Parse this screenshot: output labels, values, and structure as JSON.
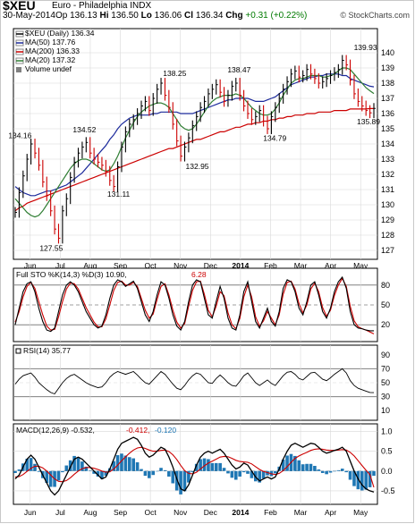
{
  "header": {
    "symbol": "$XEU",
    "name": "Euro - Philadelphia INDX",
    "date": "30-May-2014",
    "open_label": "Op",
    "open": "136.13",
    "high_label": "Hi",
    "high": "136.50",
    "low_label": "Lo",
    "low": "136.06",
    "close_label": "Cl",
    "close": "136.34",
    "change_label": "Chg",
    "change": "+0.31 (+0.22%)",
    "credit": "© StockCharts.com"
  },
  "colors": {
    "price": "#000000",
    "ma50": "#1c2a9c",
    "ma200": "#cc0000",
    "ma20": "#2e7d32",
    "volume": "#808080",
    "grid": "#d8d8d8",
    "ref_line": "#808080",
    "stoch_k": "#000000",
    "stoch_d": "#cc0000",
    "macd": "#000000",
    "macd_signal": "#cc0000",
    "macd_hist": "#1f77b4"
  },
  "chart_data": [
    {
      "type": "line",
      "panel": "price",
      "legend": [
        {
          "key": "price",
          "label": "$XEU (Daily) 136.34"
        },
        {
          "key": "ma50",
          "label": "MA(50) 137.76"
        },
        {
          "key": "ma200",
          "label": "MA(200) 136.33"
        },
        {
          "key": "ma20",
          "label": "MA(20) 137.32"
        },
        {
          "key": "volume",
          "label": "Volume undef"
        }
      ],
      "x_labels": [
        "Jun",
        "Jul",
        "Aug",
        "Sep",
        "Oct",
        "Nov",
        "Dec",
        "2014",
        "Feb",
        "Mar",
        "Apr",
        "May"
      ],
      "ylim": [
        127,
        141
      ],
      "yticks": [
        127,
        128,
        129,
        130,
        131,
        132,
        133,
        134,
        135,
        136,
        137,
        138,
        139,
        140
      ],
      "annotations": [
        {
          "label": "127.55",
          "x": 0.104,
          "y": 127.55
        },
        {
          "label": "134.16",
          "x": 0.018,
          "y": 134.16
        },
        {
          "label": "134.52",
          "x": 0.195,
          "y": 134.52
        },
        {
          "label": "131.11",
          "x": 0.289,
          "y": 131.11
        },
        {
          "label": "138.25",
          "x": 0.443,
          "y": 138.25
        },
        {
          "label": "132.95",
          "x": 0.505,
          "y": 132.95
        },
        {
          "label": "138.47",
          "x": 0.62,
          "y": 138.47
        },
        {
          "label": "134.79",
          "x": 0.718,
          "y": 134.79
        },
        {
          "label": "139.93",
          "x": 0.967,
          "y": 139.93
        },
        {
          "label": "135.89",
          "x": 1.005,
          "y": 135.89
        }
      ],
      "price": [
        129.5,
        130.8,
        131.9,
        133.0,
        134.0,
        133.4,
        132.6,
        131.5,
        130.6,
        129.6,
        128.4,
        127.8,
        129.6,
        130.4,
        131.8,
        132.8,
        133.4,
        133.8,
        134.1,
        133.4,
        133.0,
        132.8,
        132.6,
        132.2,
        131.6,
        131.2,
        132.5,
        133.8,
        134.8,
        135.3,
        135.6,
        136.0,
        136.5,
        136.8,
        136.2,
        137.0,
        137.6,
        138.0,
        137.2,
        136.4,
        135.3,
        134.2,
        133.2,
        133.8,
        134.4,
        135.2,
        135.8,
        136.4,
        136.8,
        137.3,
        137.6,
        137.9,
        137.4,
        136.8,
        137.2,
        137.8,
        138.0,
        137.2,
        136.5,
        136.0,
        135.6,
        135.8,
        136.2,
        135.5,
        135.0,
        135.8,
        136.4,
        137.0,
        137.6,
        138.1,
        138.6,
        138.8,
        138.4,
        138.5,
        138.9,
        138.6,
        138.3,
        138.0,
        138.1,
        138.3,
        138.5,
        138.7,
        138.9,
        139.5,
        139.2,
        138.2,
        137.3,
        136.8,
        136.5,
        136.2,
        136.05,
        136.34
      ],
      "ma50": [
        131.2,
        131.0,
        130.8,
        130.7,
        130.6,
        130.6,
        130.7,
        130.8,
        130.9,
        130.9,
        131.0,
        131.1,
        131.2,
        131.3,
        131.5,
        131.7,
        131.9,
        132.1,
        132.4,
        132.7,
        133.0,
        133.3,
        133.6,
        133.9,
        134.3,
        134.6,
        135.0,
        135.3,
        135.5,
        135.7,
        135.8,
        135.9,
        135.9,
        135.9,
        135.9,
        136.0,
        136.0,
        136.1,
        136.1,
        136.1,
        136.1,
        136.1,
        136.0,
        136.0,
        136.0,
        136.0,
        136.1,
        136.2,
        136.3,
        136.4,
        136.5,
        136.6,
        136.7,
        136.8,
        136.9,
        136.9,
        137.0,
        137.0,
        137.0,
        137.0,
        136.9,
        136.8,
        136.8,
        136.8,
        136.9,
        137.0,
        137.1,
        137.3,
        137.5,
        137.7,
        137.9,
        138.0,
        138.1,
        138.2,
        138.3,
        138.4,
        138.4,
        138.5,
        138.5,
        138.6,
        138.6,
        138.6,
        138.6,
        138.5,
        138.5,
        138.3,
        138.2,
        138.1,
        138.0,
        137.9,
        137.8,
        137.76
      ],
      "ma200": [
        129.6,
        129.8,
        129.9,
        130.1,
        130.2,
        130.3,
        130.4,
        130.5,
        130.6,
        130.7,
        130.8,
        130.9,
        131.0,
        131.1,
        131.2,
        131.3,
        131.4,
        131.5,
        131.6,
        131.7,
        131.8,
        131.9,
        132.0,
        132.1,
        132.2,
        132.3,
        132.4,
        132.5,
        132.6,
        132.7,
        132.8,
        132.9,
        133.0,
        133.1,
        133.2,
        133.3,
        133.4,
        133.5,
        133.6,
        133.7,
        133.7,
        133.8,
        133.9,
        134.0,
        134.1,
        134.2,
        134.3,
        134.3,
        134.4,
        134.5,
        134.6,
        134.7,
        134.8,
        134.8,
        134.9,
        135.0,
        135.1,
        135.1,
        135.2,
        135.3,
        135.3,
        135.4,
        135.4,
        135.5,
        135.5,
        135.6,
        135.6,
        135.7,
        135.7,
        135.8,
        135.8,
        135.9,
        135.9,
        135.9,
        136.0,
        136.0,
        136.0,
        136.1,
        136.1,
        136.1,
        136.1,
        136.2,
        136.2,
        136.2,
        136.2,
        136.3,
        136.3,
        136.3,
        136.3,
        136.3,
        136.33,
        136.33
      ],
      "ma20": [
        130.4,
        130.1,
        129.8,
        129.5,
        129.3,
        129.2,
        129.3,
        129.6,
        130.0,
        130.4,
        130.8,
        131.2,
        131.6,
        132.0,
        132.4,
        132.7,
        132.9,
        133.0,
        133.0,
        132.9,
        132.7,
        132.5,
        132.3,
        132.2,
        132.3,
        132.7,
        133.2,
        133.8,
        134.4,
        134.9,
        135.4,
        135.8,
        136.1,
        136.3,
        136.5,
        136.6,
        136.7,
        136.7,
        136.6,
        136.4,
        136.0,
        135.6,
        135.2,
        135.0,
        134.9,
        135.0,
        135.3,
        135.7,
        136.1,
        136.5,
        136.8,
        137.0,
        137.1,
        137.2,
        137.2,
        137.2,
        137.3,
        137.2,
        137.0,
        136.7,
        136.4,
        136.2,
        136.0,
        135.9,
        135.9,
        136.0,
        136.3,
        136.7,
        137.2,
        137.6,
        138.0,
        138.2,
        138.3,
        138.3,
        138.4,
        138.5,
        138.5,
        138.5,
        138.4,
        138.4,
        138.5,
        138.6,
        138.8,
        139.0,
        139.0,
        138.9,
        138.6,
        138.3,
        138.0,
        137.7,
        137.5,
        137.32
      ]
    },
    {
      "type": "line",
      "panel": "stochastic",
      "legend": [
        {
          "key": "stoch_k",
          "label": "Full STO %K(14,3) %D(3) 10.90,"
        },
        {
          "key": "stoch_d",
          "label": "6.28"
        }
      ],
      "ylim": [
        0,
        100
      ],
      "ref_lines": [
        20,
        50,
        80
      ],
      "tick_labels": [
        "80",
        "50",
        "20"
      ],
      "k": [
        20,
        45,
        70,
        82,
        85,
        70,
        45,
        25,
        12,
        10,
        15,
        40,
        65,
        80,
        85,
        80,
        70,
        55,
        40,
        30,
        20,
        15,
        18,
        35,
        60,
        80,
        88,
        85,
        78,
        82,
        86,
        75,
        55,
        35,
        25,
        40,
        65,
        85,
        80,
        60,
        35,
        18,
        12,
        25,
        55,
        80,
        88,
        85,
        60,
        35,
        30,
        55,
        78,
        60,
        30,
        15,
        12,
        35,
        70,
        85,
        55,
        25,
        15,
        30,
        45,
        25,
        18,
        40,
        75,
        88,
        85,
        70,
        45,
        35,
        55,
        80,
        85,
        65,
        40,
        30,
        45,
        70,
        85,
        92,
        75,
        40,
        20,
        15,
        14,
        12,
        11,
        10.9
      ],
      "d": [
        24,
        40,
        62,
        78,
        84,
        75,
        55,
        35,
        18,
        12,
        13,
        32,
        55,
        74,
        83,
        82,
        74,
        60,
        46,
        35,
        24,
        17,
        17,
        29,
        50,
        72,
        84,
        86,
        80,
        80,
        84,
        78,
        60,
        42,
        30,
        36,
        58,
        78,
        82,
        65,
        42,
        24,
        15,
        22,
        48,
        72,
        85,
        86,
        66,
        42,
        32,
        48,
        70,
        64,
        38,
        20,
        14,
        30,
        62,
        80,
        62,
        32,
        18,
        26,
        40,
        30,
        20,
        35,
        66,
        84,
        86,
        74,
        52,
        38,
        50,
        74,
        83,
        70,
        46,
        33,
        42,
        64,
        80,
        90,
        78,
        48,
        26,
        17,
        14,
        12,
        9,
        6.28
      ]
    },
    {
      "type": "line",
      "panel": "rsi",
      "legend": [
        {
          "key": "price",
          "label": "RSI(14) 35.77"
        }
      ],
      "ylim": [
        0,
        100
      ],
      "ref_lines": [
        30,
        70
      ],
      "tick_labels": [
        "90",
        "70",
        "50",
        "30",
        "10"
      ],
      "values": [
        48,
        55,
        60,
        62,
        64,
        58,
        50,
        45,
        40,
        36,
        34,
        42,
        50,
        56,
        60,
        62,
        58,
        54,
        50,
        47,
        45,
        43,
        44,
        50,
        58,
        63,
        66,
        64,
        62,
        64,
        66,
        61,
        55,
        50,
        48,
        54,
        60,
        66,
        62,
        55,
        48,
        42,
        40,
        46,
        54,
        60,
        64,
        62,
        56,
        50,
        49,
        56,
        61,
        56,
        50,
        46,
        45,
        52,
        60,
        64,
        57,
        50,
        46,
        50,
        54,
        49,
        46,
        53,
        60,
        65,
        66,
        62,
        56,
        54,
        59,
        64,
        65,
        60,
        55,
        53,
        57,
        62,
        66,
        70,
        64,
        53,
        46,
        42,
        40,
        38,
        36,
        35.77
      ]
    },
    {
      "type": "line",
      "panel": "macd",
      "legend": [
        {
          "key": "macd",
          "label": "MACD(12,26,9) -0.532,"
        },
        {
          "key": "macd_signal",
          "label": "-0.412,"
        },
        {
          "key": "macd_hist",
          "label": "-0.120"
        }
      ],
      "x_labels": [
        "Jun",
        "Jul",
        "Aug",
        "Sep",
        "Oct",
        "Nov",
        "Dec",
        "2014",
        "Feb",
        "Mar",
        "Apr",
        "May"
      ],
      "ylim": [
        -0.75,
        1.1
      ],
      "yticks": [
        -0.5,
        0.0,
        0.5,
        1.0
      ],
      "tick_labels": [
        "-0.5",
        "0.0",
        "0.5",
        "1.0"
      ],
      "macd": [
        -0.2,
        -0.1,
        0.1,
        0.3,
        0.4,
        0.3,
        0.1,
        -0.1,
        -0.3,
        -0.5,
        -0.6,
        -0.5,
        -0.3,
        -0.1,
        0.1,
        0.3,
        0.35,
        0.3,
        0.2,
        0.1,
        0.0,
        -0.1,
        -0.2,
        -0.15,
        0.05,
        0.3,
        0.55,
        0.7,
        0.75,
        0.8,
        0.85,
        0.8,
        0.65,
        0.45,
        0.35,
        0.4,
        0.5,
        0.6,
        0.55,
        0.35,
        0.1,
        -0.2,
        -0.45,
        -0.5,
        -0.35,
        -0.1,
        0.15,
        0.35,
        0.45,
        0.5,
        0.45,
        0.5,
        0.55,
        0.45,
        0.3,
        0.15,
        0.05,
        0.1,
        0.2,
        0.15,
        0.0,
        -0.15,
        -0.25,
        -0.2,
        -0.15,
        -0.2,
        -0.15,
        0.05,
        0.3,
        0.5,
        0.65,
        0.7,
        0.65,
        0.6,
        0.65,
        0.7,
        0.68,
        0.6,
        0.5,
        0.45,
        0.48,
        0.52,
        0.55,
        0.6,
        0.5,
        0.25,
        0.0,
        -0.2,
        -0.35,
        -0.45,
        -0.5,
        -0.532
      ],
      "signal": [
        -0.15,
        -0.14,
        -0.09,
        -0.01,
        0.07,
        0.12,
        0.12,
        0.08,
        0.0,
        -0.1,
        -0.2,
        -0.26,
        -0.27,
        -0.24,
        -0.17,
        -0.08,
        0.0,
        0.06,
        0.09,
        0.09,
        0.07,
        0.04,
        0.0,
        -0.03,
        -0.02,
        0.05,
        0.15,
        0.26,
        0.36,
        0.45,
        0.53,
        0.58,
        0.6,
        0.57,
        0.53,
        0.5,
        0.5,
        0.52,
        0.53,
        0.49,
        0.41,
        0.29,
        0.14,
        0.01,
        -0.06,
        -0.07,
        -0.03,
        0.05,
        0.13,
        0.2,
        0.25,
        0.3,
        0.35,
        0.37,
        0.36,
        0.32,
        0.27,
        0.24,
        0.23,
        0.22,
        0.18,
        0.11,
        0.04,
        -0.01,
        -0.04,
        -0.07,
        -0.09,
        -0.06,
        0.01,
        0.11,
        0.22,
        0.32,
        0.38,
        0.43,
        0.47,
        0.52,
        0.55,
        0.56,
        0.55,
        0.53,
        0.52,
        0.52,
        0.53,
        0.54,
        0.53,
        0.47,
        0.38,
        0.26,
        0.14,
        0.02,
        -0.09,
        -0.412
      ],
      "histogram": [
        -0.05,
        0.04,
        0.19,
        0.31,
        0.33,
        0.18,
        -0.02,
        -0.18,
        -0.3,
        -0.4,
        -0.4,
        -0.24,
        -0.03,
        0.14,
        0.27,
        0.38,
        0.35,
        0.24,
        0.11,
        0.01,
        -0.07,
        -0.14,
        -0.2,
        -0.12,
        0.07,
        0.25,
        0.4,
        0.44,
        0.39,
        0.35,
        0.32,
        0.22,
        0.05,
        -0.12,
        -0.18,
        -0.1,
        0.0,
        0.08,
        0.02,
        -0.14,
        -0.31,
        -0.49,
        -0.59,
        -0.51,
        -0.29,
        -0.03,
        0.18,
        0.3,
        0.32,
        0.3,
        0.2,
        0.2,
        0.2,
        0.08,
        -0.06,
        -0.17,
        -0.22,
        -0.14,
        -0.03,
        -0.07,
        -0.18,
        -0.26,
        -0.29,
        -0.19,
        -0.11,
        -0.13,
        -0.06,
        0.11,
        0.29,
        0.39,
        0.43,
        0.38,
        0.27,
        0.17,
        0.18,
        0.18,
        0.13,
        0.04,
        -0.05,
        -0.08,
        -0.04,
        0.0,
        0.02,
        0.06,
        -0.03,
        -0.22,
        -0.38,
        -0.46,
        -0.49,
        -0.47,
        -0.41,
        -0.12
      ]
    }
  ]
}
